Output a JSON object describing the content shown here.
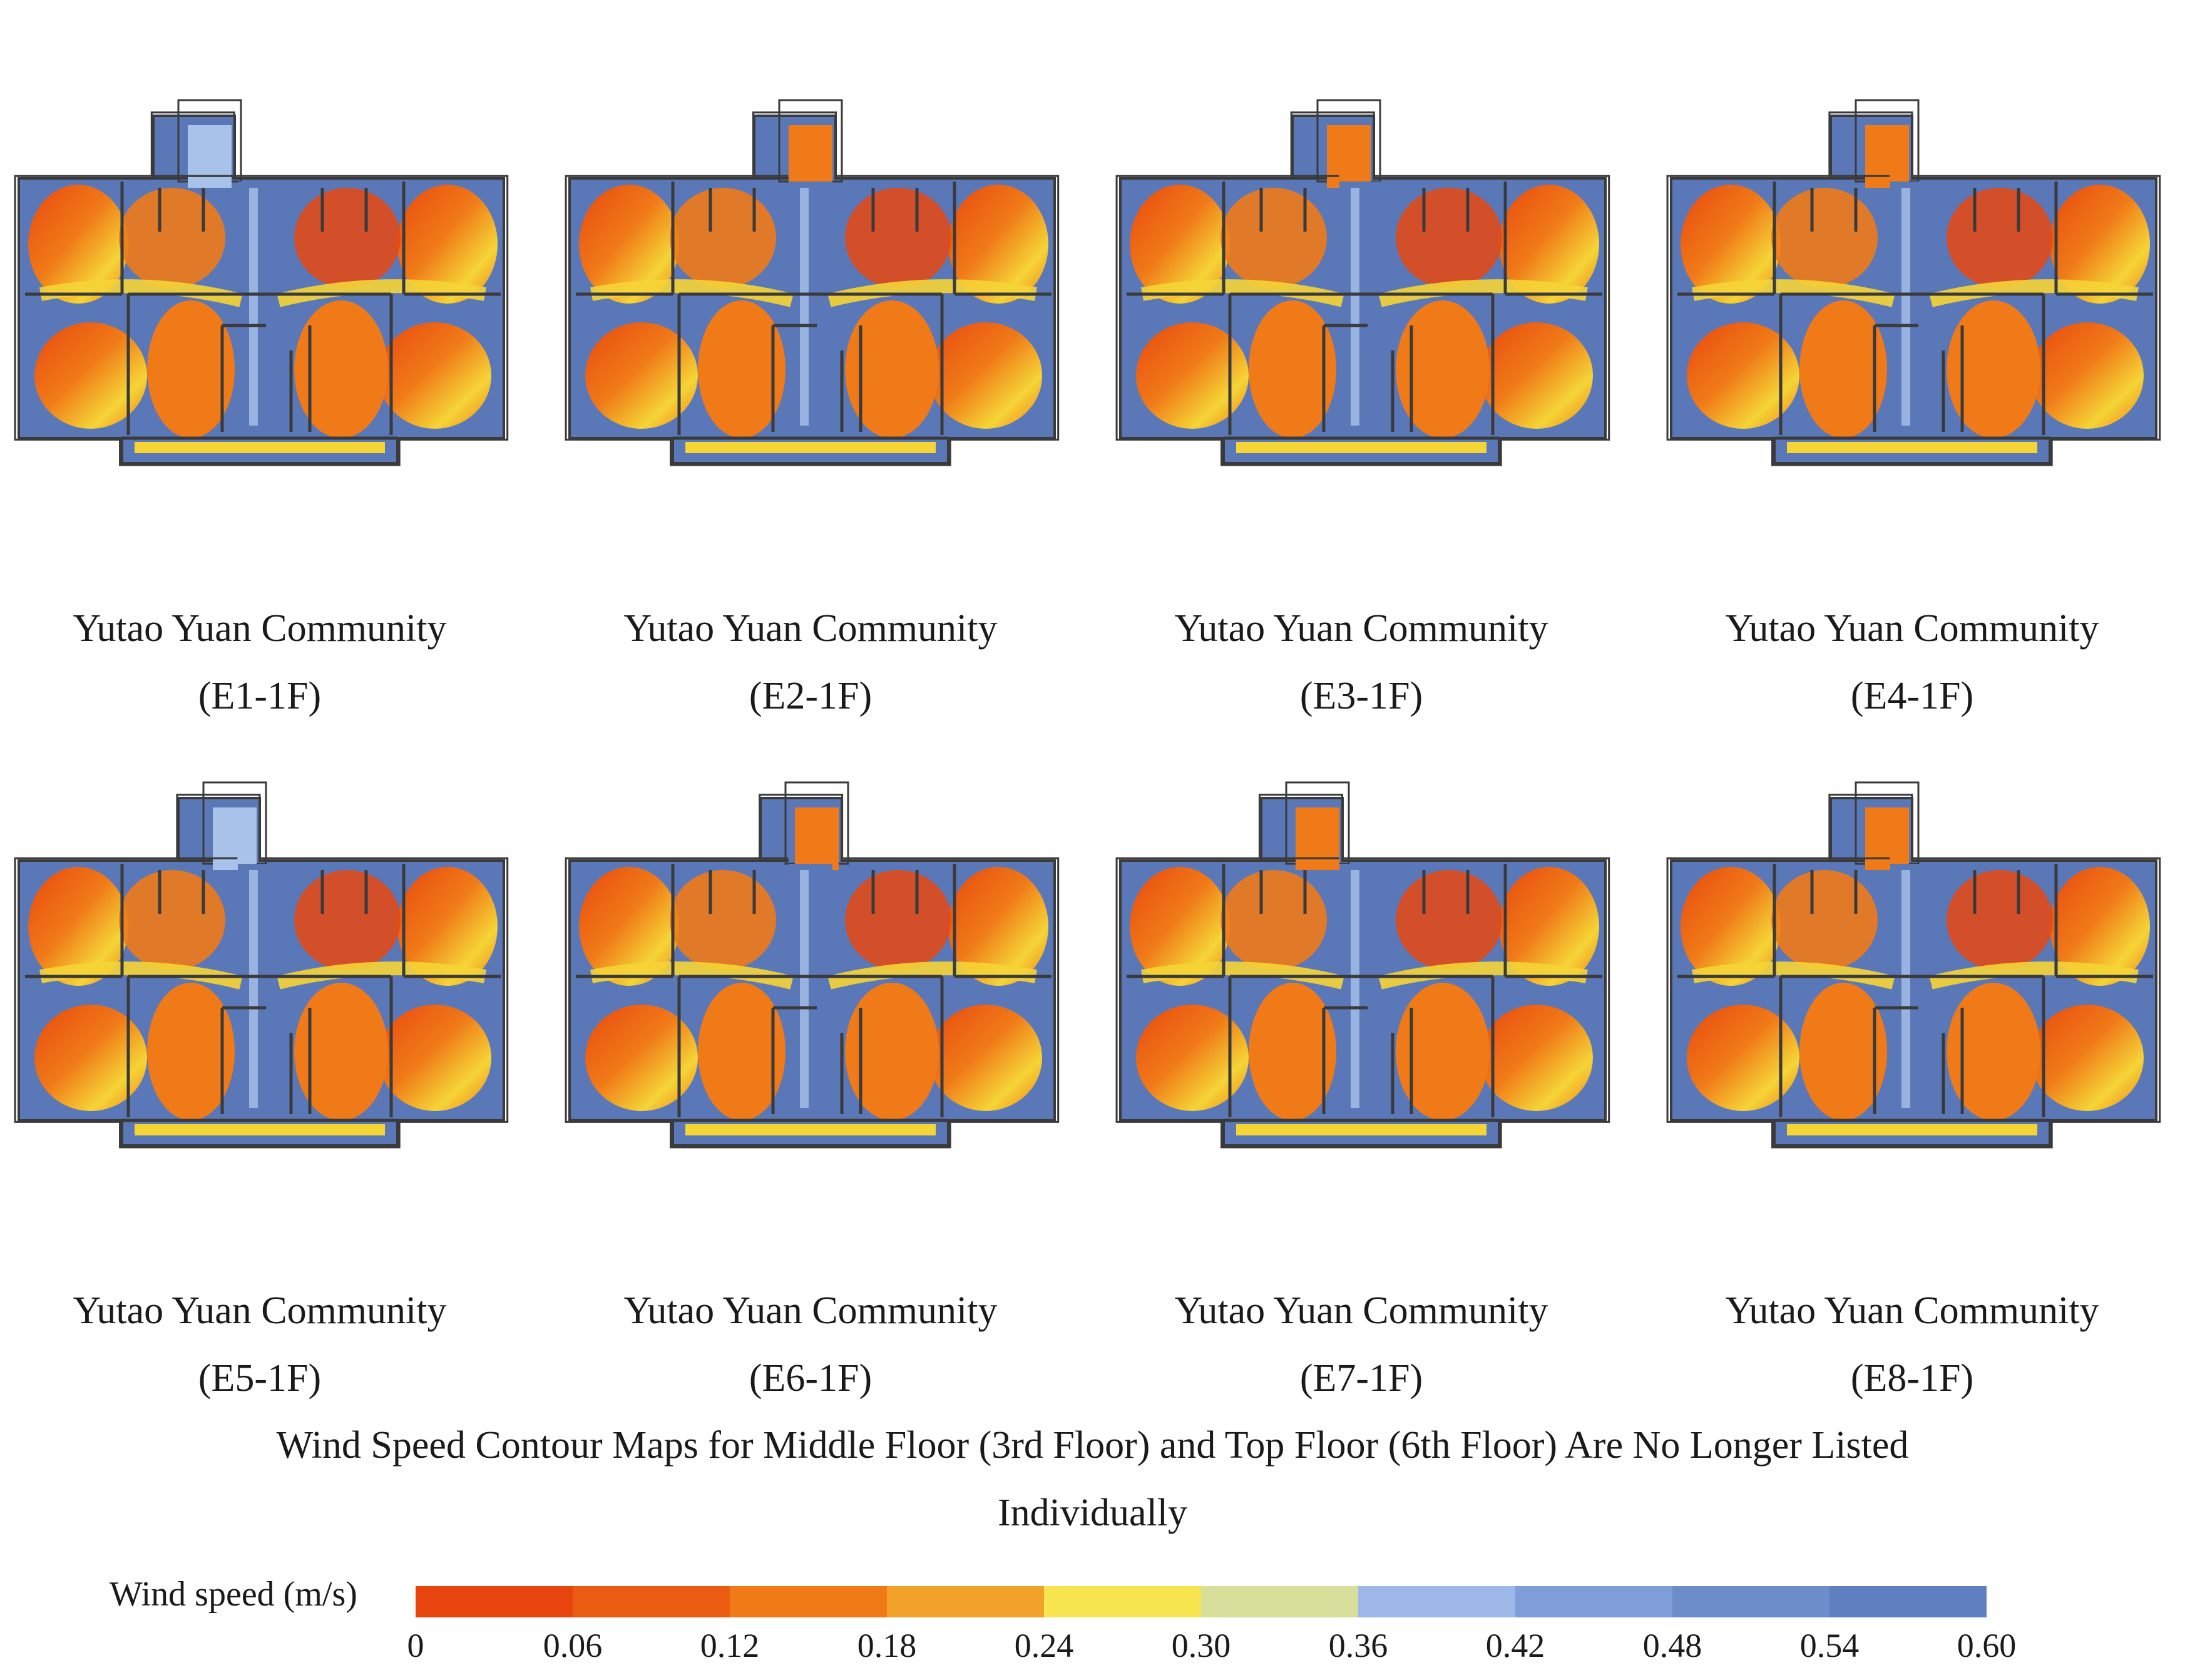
{
  "figure": {
    "panels": [
      {
        "community": "Yutao Yuan Community",
        "label": "(E1-1F)"
      },
      {
        "community": "Yutao Yuan Community",
        "label": "(E2-1F)"
      },
      {
        "community": "Yutao Yuan Community",
        "label": "(E3-1F)"
      },
      {
        "community": "Yutao Yuan Community",
        "label": "(E4-1F)"
      },
      {
        "community": "Yutao Yuan Community",
        "label": "(E5-1F)"
      },
      {
        "community": "Yutao Yuan Community",
        "label": "(E6-1F)"
      },
      {
        "community": "Yutao Yuan Community",
        "label": "(E7-1F)"
      },
      {
        "community": "Yutao Yuan Community",
        "label": "(E8-1F)"
      }
    ],
    "note_line1": "Wind Speed Contour Maps for Middle Floor (3rd Floor) and Top Floor (6th Floor) Are No Longer Listed",
    "note_line2": "Individually"
  },
  "legend": {
    "title": "Wind speed (m/s)",
    "ticks": [
      "0",
      "0.06",
      "0.12",
      "0.18",
      "0.24",
      "0.30",
      "0.36",
      "0.42",
      "0.48",
      "0.54",
      "0.60"
    ],
    "colors": [
      "#e8440f",
      "#ec5b12",
      "#ef7a16",
      "#f2a22a",
      "#f7e64f",
      "#d7df9a",
      "#9db8e8",
      "#7f9dd8",
      "#6d8cca",
      "#5f7fc0",
      "#5472b3"
    ]
  },
  "palette": {
    "red": "#e8480f",
    "orange": "#f07a18",
    "yellow": "#f5d436",
    "light_blue": "#a8c2ea",
    "blue": "#5a78b8",
    "wall": "#3a3a3a"
  }
}
